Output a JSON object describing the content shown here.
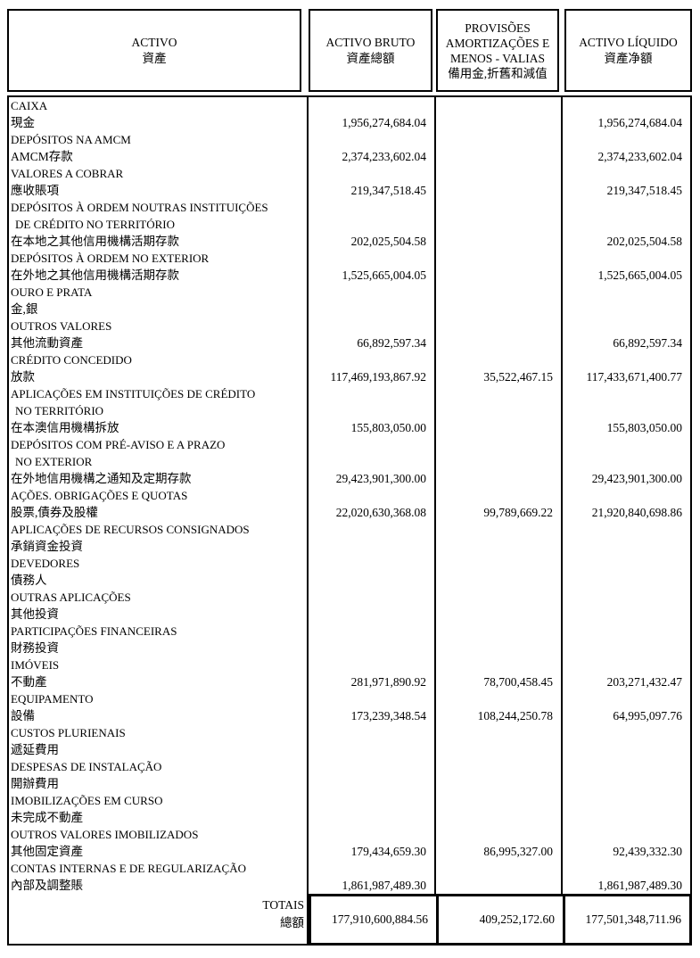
{
  "header": {
    "columns": [
      {
        "lines": [
          "ACTIVO"
        ],
        "zh": "資產"
      },
      {
        "lines": [
          "ACTIVO BRUTO"
        ],
        "zh": "資產總額"
      },
      {
        "lines": [
          "PROVISÕES",
          "AMORTIZAÇÕES E",
          "MENOS - VALIAS"
        ],
        "zh": "備用金,折舊和減值"
      },
      {
        "lines": [
          "ACTIVO LÍQUIDO"
        ],
        "zh": "資產净額"
      }
    ]
  },
  "rows": [
    {
      "pt": [
        "CAIXA"
      ],
      "zh": "現金",
      "bruto": "1,956,274,684.04",
      "prov": "",
      "liq": "1,956,274,684.04"
    },
    {
      "pt": [
        "DEPÓSITOS NA AMCM"
      ],
      "zh": "AMCM存款",
      "bruto": "2,374,233,602.04",
      "prov": "",
      "liq": "2,374,233,602.04"
    },
    {
      "pt": [
        "VALORES A COBRAR"
      ],
      "zh": "應收賬項",
      "bruto": "219,347,518.45",
      "prov": "",
      "liq": "219,347,518.45"
    },
    {
      "pt": [
        "DEPÓSITOS À ORDEM NOUTRAS INSTITUIÇÕES",
        "DE CRÉDITO NO TERRITÓRIO"
      ],
      "zh": "在本地之其他信用機構活期存款",
      "bruto": "202,025,504.58",
      "prov": "",
      "liq": "202,025,504.58"
    },
    {
      "pt": [
        "DEPÓSITOS À ORDEM NO EXTERIOR"
      ],
      "zh": "在外地之其他信用機構活期存款",
      "bruto": "1,525,665,004.05",
      "prov": "",
      "liq": "1,525,665,004.05"
    },
    {
      "pt": [
        "OURO E PRATA"
      ],
      "zh": "金,銀",
      "bruto": "",
      "prov": "",
      "liq": ""
    },
    {
      "pt": [
        "OUTROS VALORES"
      ],
      "zh": "其他流動資產",
      "bruto": "66,892,597.34",
      "prov": "",
      "liq": "66,892,597.34"
    },
    {
      "pt": [
        "CRÉDITO CONCEDIDO"
      ],
      "zh": "放款",
      "bruto": "117,469,193,867.92",
      "prov": "35,522,467.15",
      "liq": "117,433,671,400.77"
    },
    {
      "pt": [
        "APLICAÇÕES EM INSTITUIÇÕES DE CRÉDITO",
        "NO TERRITÓRIO"
      ],
      "zh": "在本澳信用機構拆放",
      "bruto": "155,803,050.00",
      "prov": "",
      "liq": "155,803,050.00"
    },
    {
      "pt": [
        "DEPÓSITOS COM PRÉ-AVISO E A PRAZO",
        "NO EXTERIOR"
      ],
      "zh": "在外地信用機構之通知及定期存款",
      "bruto": "29,423,901,300.00",
      "prov": "",
      "liq": "29,423,901,300.00"
    },
    {
      "pt": [
        "AÇÕES. OBRIGAÇÕES E QUOTAS"
      ],
      "zh": "股票,債券及股權",
      "bruto": "22,020,630,368.08",
      "prov": "99,789,669.22",
      "liq": "21,920,840,698.86"
    },
    {
      "pt": [
        "APLICAÇÕES DE RECURSOS CONSIGNADOS"
      ],
      "zh": "承銷資金投資",
      "bruto": "",
      "prov": "",
      "liq": ""
    },
    {
      "pt": [
        "DEVEDORES"
      ],
      "zh": "債務人",
      "bruto": "",
      "prov": "",
      "liq": ""
    },
    {
      "pt": [
        "OUTRAS APLICAÇÕES"
      ],
      "zh": "其他投資",
      "bruto": "",
      "prov": "",
      "liq": ""
    },
    {
      "pt": [
        "PARTICIPAÇÕES FINANCEIRAS"
      ],
      "zh": "財務投資",
      "bruto": "",
      "prov": "",
      "liq": ""
    },
    {
      "pt": [
        "IMÓVEIS"
      ],
      "zh": "不動產",
      "bruto": "281,971,890.92",
      "prov": "78,700,458.45",
      "liq": "203,271,432.47"
    },
    {
      "pt": [
        "EQUIPAMENTO"
      ],
      "zh": "設備",
      "bruto": "173,239,348.54",
      "prov": "108,244,250.78",
      "liq": "64,995,097.76"
    },
    {
      "pt": [
        "CUSTOS PLURIENAIS"
      ],
      "zh": "遞延費用",
      "bruto": "",
      "prov": "",
      "liq": ""
    },
    {
      "pt": [
        "DESPESAS DE INSTALAÇÃO"
      ],
      "zh": "開辦費用",
      "bruto": "",
      "prov": "",
      "liq": ""
    },
    {
      "pt": [
        "IMOBILIZAÇÕES EM CURSO"
      ],
      "zh": "未完成不動產",
      "bruto": "",
      "prov": "",
      "liq": ""
    },
    {
      "pt": [
        "OUTROS VALORES IMOBILIZADOS"
      ],
      "zh": "其他固定資產",
      "bruto": "179,434,659.30",
      "prov": "86,995,327.00",
      "liq": "92,439,332.30"
    },
    {
      "pt": [
        "CONTAS INTERNAS E DE REGULARIZAÇÃO"
      ],
      "zh": "內部及調整賬",
      "bruto": "1,861,987,489.30",
      "prov": "",
      "liq": "1,861,987,489.30"
    }
  ],
  "totals": {
    "pt": "TOTAIS",
    "zh": "總額",
    "bruto": "177,910,600,884.56",
    "prov": "409,252,172.60",
    "liq": "177,501,348,711.96"
  }
}
